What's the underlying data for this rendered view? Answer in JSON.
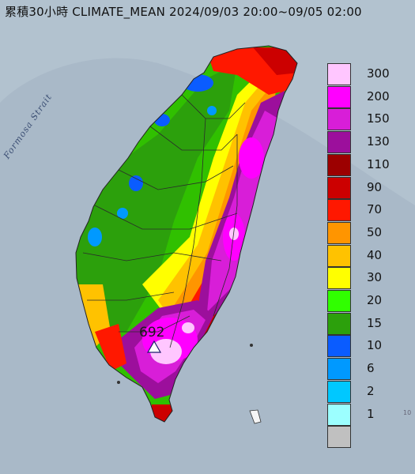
{
  "title": "累積30小時 CLIMATE_MEAN 2024/09/03 20:00~09/05 02:00",
  "strait_label": "Formosa Strait",
  "max_value": "692",
  "corner_mark": "10",
  "legend": [
    {
      "label": "300",
      "color": "#ffc6ff"
    },
    {
      "label": "200",
      "color": "#ff00ff"
    },
    {
      "label": "150",
      "color": "#d81ed8"
    },
    {
      "label": "130",
      "color": "#9c0f9c"
    },
    {
      "label": "110",
      "color": "#9c0000"
    },
    {
      "label": "90",
      "color": "#cc0000"
    },
    {
      "label": "70",
      "color": "#ff1800"
    },
    {
      "label": "50",
      "color": "#ff9500"
    },
    {
      "label": "40",
      "color": "#ffc200"
    },
    {
      "label": "30",
      "color": "#ffff00"
    },
    {
      "label": "20",
      "color": "#30ff00"
    },
    {
      "label": "15",
      "color": "#2ca00c"
    },
    {
      "label": "10",
      "color": "#0a5cff"
    },
    {
      "label": "6",
      "color": "#0099ff"
    },
    {
      "label": "2",
      "color": "#00c8ff"
    },
    {
      "label": "1",
      "color": "#9cffff"
    },
    {
      "label": "",
      "color": "#c0c0c0"
    }
  ]
}
